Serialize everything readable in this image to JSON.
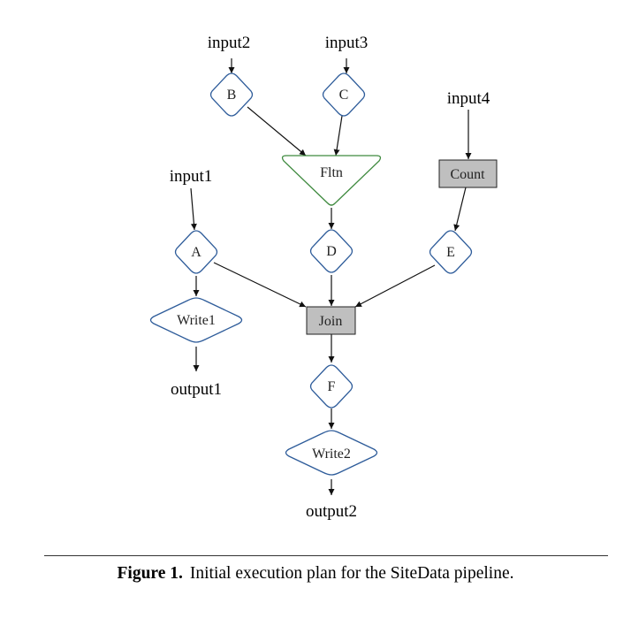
{
  "nodes": {
    "input1": "input1",
    "input2": "input2",
    "input3": "input3",
    "input4": "input4",
    "A": "A",
    "B": "B",
    "C": "C",
    "D": "D",
    "E": "E",
    "F": "F",
    "fltn": "Fltn",
    "count": "Count",
    "join": "Join",
    "write1": "Write1",
    "write2": "Write2",
    "output1": "output1",
    "output2": "output2"
  },
  "caption": {
    "label": "Figure 1.",
    "text": "Initial execution plan for the SiteData pipeline."
  },
  "colors": {
    "op_stroke": "#2e5c9a",
    "fltn_stroke": "#3f8a3f",
    "box_fill": "#bfbfbf"
  }
}
